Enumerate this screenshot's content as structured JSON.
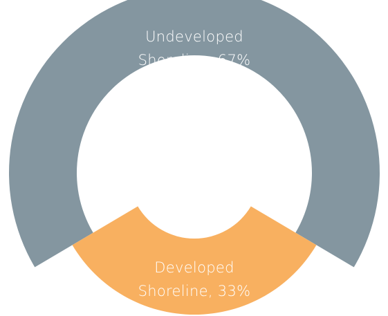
{
  "chart_data": {
    "type": "donut",
    "categories": [
      "Undeveloped Shoreline",
      "Developed Shoreline"
    ],
    "values": [
      67,
      33
    ],
    "value_labels": [
      "67%",
      "33%"
    ],
    "colors": [
      "#8496a0",
      "#f8b060"
    ]
  }
}
